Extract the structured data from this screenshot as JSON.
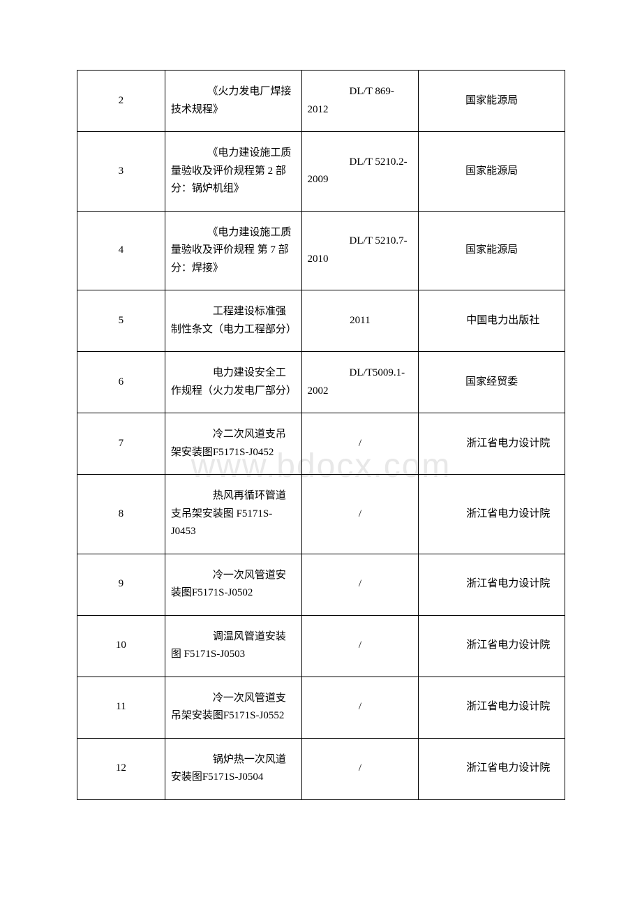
{
  "watermark": "www.bdocx.com",
  "table": {
    "rows": [
      {
        "num": "2",
        "title": "　　《火力发电厂焊接技术规程》",
        "code": "　　DL/T 869-2012",
        "issuer": "国家能源局",
        "codeCenter": false,
        "issuerCenter": true
      },
      {
        "num": "3",
        "title": "　　《电力建设施工质量验收及评价规程第 2 部分：锅炉机组》",
        "code": "　　DL/T 5210.2-2009",
        "issuer": "国家能源局",
        "codeCenter": false,
        "issuerCenter": true
      },
      {
        "num": "4",
        "title": "　　《电力建设施工质量验收及评价规程 第 7 部分：焊接》",
        "code": "　　DL/T 5210.7-2010",
        "issuer": "国家能源局",
        "codeCenter": false,
        "issuerCenter": true
      },
      {
        "num": "5",
        "title": "　　工程建设标准强制性条文（电力工程部分）",
        "code": "2011",
        "issuer": "　　中国电力出版社",
        "codeCenter": true,
        "issuerCenter": false
      },
      {
        "num": "6",
        "title": "　　电力建设安全工作规程（火力发电厂部分）",
        "code": "　　DL/T5009.1-2002",
        "issuer": "国家经贸委",
        "codeCenter": false,
        "issuerCenter": true
      },
      {
        "num": "7",
        "title": "　　冷二次风道支吊架安装图F5171S-J0452",
        "code": "/",
        "issuer": "　　浙江省电力设计院",
        "codeCenter": true,
        "issuerCenter": false
      },
      {
        "num": "8",
        "title": "　　热风再循环管道支吊架安装图 F5171S-J0453",
        "code": "/",
        "issuer": "　　浙江省电力设计院",
        "codeCenter": true,
        "issuerCenter": false
      },
      {
        "num": "9",
        "title": "　　冷一次风管道安装图F5171S-J0502",
        "code": "/",
        "issuer": "　　浙江省电力设计院",
        "codeCenter": true,
        "issuerCenter": false
      },
      {
        "num": "10",
        "title": "　　调温风管道安装图 F5171S-J0503",
        "code": "/",
        "issuer": "　　浙江省电力设计院",
        "codeCenter": true,
        "issuerCenter": false
      },
      {
        "num": "11",
        "title": "　　冷一次风管道支吊架安装图F5171S-J0552",
        "code": "/",
        "issuer": "　　浙江省电力设计院",
        "codeCenter": true,
        "issuerCenter": false
      },
      {
        "num": "12",
        "title": "　　锅炉热一次风道安装图F5171S-J0504",
        "code": "/",
        "issuer": "　　浙江省电力设计院",
        "codeCenter": true,
        "issuerCenter": false
      }
    ],
    "styling": {
      "border_color": "#000000",
      "background_color": "#ffffff",
      "font_size": 15,
      "line_height": 1.7,
      "text_color": "#000000",
      "col_widths": [
        "18%",
        "28%",
        "24%",
        "30%"
      ]
    }
  }
}
